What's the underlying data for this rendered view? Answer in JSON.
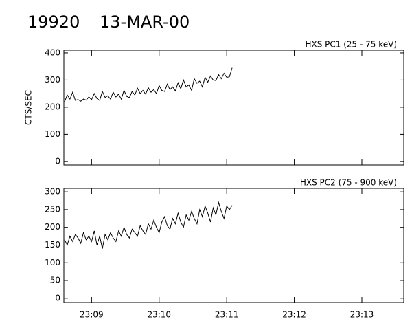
{
  "title": {
    "id": "19920",
    "date": "13-MAR-00"
  },
  "chart_data": [
    {
      "type": "line",
      "subtitle": "HXS PC1 (25 - 75 keV)",
      "ylabel": "CTS/SEC",
      "xlim": [
        8.59,
        13.62
      ],
      "xticks": [
        9,
        10,
        11,
        12,
        13
      ],
      "ylim": [
        -13,
        410
      ],
      "yticks": [
        0,
        100,
        200,
        300,
        400
      ],
      "series": [
        {
          "color": "#000000",
          "x": [
            8.6,
            8.64,
            8.68,
            8.72,
            8.76,
            8.8,
            8.84,
            8.88,
            8.92,
            8.96,
            9,
            9.04,
            9.08,
            9.12,
            9.16,
            9.2,
            9.24,
            9.28,
            9.32,
            9.36,
            9.4,
            9.44,
            9.48,
            9.52,
            9.56,
            9.6,
            9.64,
            9.68,
            9.72,
            9.76,
            9.8,
            9.84,
            9.88,
            9.92,
            9.96,
            10,
            10.04,
            10.08,
            10.12,
            10.16,
            10.2,
            10.24,
            10.28,
            10.32,
            10.36,
            10.4,
            10.44,
            10.48,
            10.52,
            10.56,
            10.6,
            10.64,
            10.68,
            10.72,
            10.76,
            10.8,
            10.84,
            10.88,
            10.92,
            10.96,
            11,
            11.04,
            11.08
          ],
          "values": [
            220,
            245,
            230,
            255,
            225,
            228,
            222,
            230,
            226,
            238,
            228,
            250,
            232,
            225,
            258,
            236,
            242,
            230,
            255,
            238,
            248,
            230,
            262,
            240,
            235,
            258,
            245,
            270,
            250,
            262,
            248,
            272,
            255,
            265,
            250,
            280,
            262,
            258,
            285,
            265,
            275,
            260,
            290,
            268,
            300,
            275,
            282,
            262,
            305,
            288,
            296,
            275,
            310,
            292,
            315,
            300,
            298,
            320,
            305,
            325,
            310,
            312,
            345
          ]
        }
      ]
    },
    {
      "type": "line",
      "subtitle": "HXS PC2 (75 - 900 keV)",
      "xlim": [
        8.59,
        13.62
      ],
      "xticks": [
        {
          "value": 9,
          "label": "23:09"
        },
        {
          "value": 10,
          "label": "23:10"
        },
        {
          "value": 11,
          "label": "23:11"
        },
        {
          "value": 12,
          "label": "23:12"
        },
        {
          "value": 13,
          "label": "23:13"
        }
      ],
      "ylim": [
        -12,
        310
      ],
      "yticks": [
        0,
        50,
        100,
        150,
        200,
        250,
        300
      ],
      "series": [
        {
          "color": "#000000",
          "x": [
            8.6,
            8.64,
            8.68,
            8.72,
            8.76,
            8.8,
            8.84,
            8.88,
            8.92,
            8.96,
            9,
            9.04,
            9.08,
            9.12,
            9.16,
            9.2,
            9.24,
            9.28,
            9.32,
            9.36,
            9.4,
            9.44,
            9.48,
            9.52,
            9.56,
            9.6,
            9.64,
            9.68,
            9.72,
            9.76,
            9.8,
            9.84,
            9.88,
            9.92,
            9.96,
            10,
            10.04,
            10.08,
            10.12,
            10.16,
            10.2,
            10.24,
            10.28,
            10.32,
            10.36,
            10.4,
            10.44,
            10.48,
            10.52,
            10.56,
            10.6,
            10.64,
            10.68,
            10.72,
            10.76,
            10.8,
            10.84,
            10.88,
            10.92,
            10.96,
            11,
            11.04,
            11.08
          ],
          "values": [
            165,
            150,
            175,
            160,
            180,
            170,
            155,
            185,
            165,
            175,
            160,
            190,
            150,
            175,
            140,
            180,
            165,
            185,
            170,
            160,
            190,
            175,
            200,
            180,
            170,
            195,
            185,
            175,
            205,
            190,
            180,
            210,
            195,
            220,
            200,
            185,
            215,
            230,
            205,
            195,
            225,
            210,
            240,
            215,
            200,
            235,
            220,
            245,
            225,
            210,
            250,
            230,
            260,
            240,
            215,
            255,
            235,
            270,
            245,
            225,
            260,
            250,
            262
          ]
        }
      ]
    }
  ]
}
